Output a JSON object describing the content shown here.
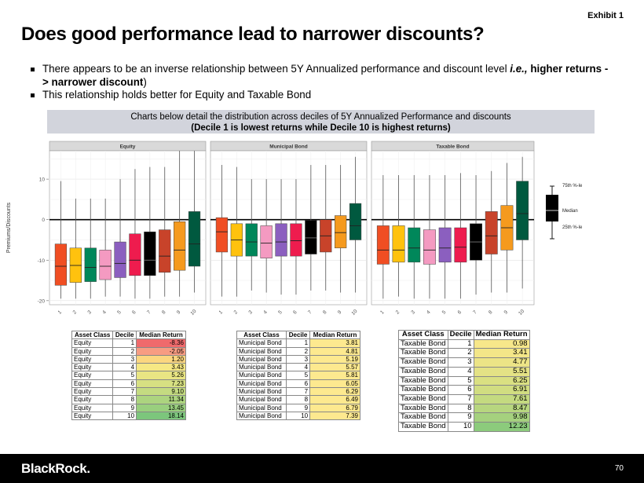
{
  "exhibit": "Exhibit 1",
  "title": "Does good performance lead to narrower discounts?",
  "bullets": [
    {
      "text": "There appears to be an inverse relationship between 5Y Annualized performance and discount level ",
      "bold": "(i.e., higher returns -> narrower discount)"
    },
    {
      "text": "This relationship holds better for Equity and Taxable Bond",
      "bold": ""
    }
  ],
  "banner": {
    "line1": "Charts below detail the distribution across deciles of 5Y Annualized Performance and discounts",
    "line2": "(Decile 1 is lowest returns while Decile 10 is highest returns)"
  },
  "chart_data": {
    "type": "box",
    "ylabel": "Premiums/Discounts",
    "ylim": [
      -21,
      17
    ],
    "yticks": [
      10,
      0,
      -10,
      -20
    ],
    "categories": [
      "1",
      "2",
      "3",
      "4",
      "5",
      "6",
      "7",
      "8",
      "9",
      "10"
    ],
    "reference_line": 0,
    "colors": [
      "#f04e23",
      "#ffc20e",
      "#00875a",
      "#f49ac1",
      "#8b5fbf",
      "#ee1c4e",
      "#000000",
      "#c8432a",
      "#f59a1e",
      "#00593f"
    ],
    "panels": [
      {
        "name": "Equity",
        "boxes": [
          {
            "q1": -16.2,
            "med": -11.5,
            "q3": -6.0,
            "lo": -19.5,
            "hi": 9.5
          },
          {
            "q1": -15.5,
            "med": -11.3,
            "q3": -7.0,
            "lo": -19.5,
            "hi": 5.2
          },
          {
            "q1": -15.3,
            "med": -11.8,
            "q3": -7.0,
            "lo": -19.5,
            "hi": 5.2
          },
          {
            "q1": -14.8,
            "med": -11.5,
            "q3": -7.5,
            "lo": -19.0,
            "hi": 5.2
          },
          {
            "q1": -14.3,
            "med": -10.8,
            "q3": -5.5,
            "lo": -19.0,
            "hi": 10.0
          },
          {
            "q1": -13.8,
            "med": -10.0,
            "q3": -3.5,
            "lo": -19.5,
            "hi": 12.5
          },
          {
            "q1": -13.8,
            "med": -10.0,
            "q3": -3.0,
            "lo": -19.5,
            "hi": 13.0
          },
          {
            "q1": -13.0,
            "med": -9.0,
            "q3": -2.5,
            "lo": -19.0,
            "hi": 13.0
          },
          {
            "q1": -12.5,
            "med": -7.5,
            "q3": -0.5,
            "lo": -19.0,
            "hi": 17.0
          },
          {
            "q1": -11.5,
            "med": -6.0,
            "q3": 2.0,
            "lo": -18.0,
            "hi": 17.0
          }
        ]
      },
      {
        "name": "Municipal Bond",
        "boxes": [
          {
            "q1": -8.0,
            "med": -3.0,
            "q3": 0.5,
            "lo": -19.0,
            "hi": 13.5
          },
          {
            "q1": -9.0,
            "med": -5.0,
            "q3": -1.0,
            "lo": -19.0,
            "hi": 13.0
          },
          {
            "q1": -9.0,
            "med": -5.5,
            "q3": -1.0,
            "lo": -17.5,
            "hi": 10.0
          },
          {
            "q1": -9.5,
            "med": -5.8,
            "q3": -1.5,
            "lo": -18.0,
            "hi": 10.0
          },
          {
            "q1": -9.0,
            "med": -5.5,
            "q3": -1.0,
            "lo": -18.5,
            "hi": 10.0
          },
          {
            "q1": -9.0,
            "med": -5.2,
            "q3": -1.0,
            "lo": -18.5,
            "hi": 10.0
          },
          {
            "q1": -8.5,
            "med": -4.5,
            "q3": -0.2,
            "lo": -17.5,
            "hi": 13.5
          },
          {
            "q1": -8.0,
            "med": -4.0,
            "q3": 0.0,
            "lo": -17.5,
            "hi": 13.5
          },
          {
            "q1": -7.0,
            "med": -3.2,
            "q3": 1.0,
            "lo": -18.0,
            "hi": 13.5
          },
          {
            "q1": -5.0,
            "med": -1.5,
            "q3": 4.0,
            "lo": -18.0,
            "hi": 15.5
          }
        ]
      },
      {
        "name": "Taxable Bond",
        "boxes": [
          {
            "q1": -11.0,
            "med": -7.5,
            "q3": -1.5,
            "lo": -19.5,
            "hi": 11.0
          },
          {
            "q1": -10.5,
            "med": -7.5,
            "q3": -1.5,
            "lo": -19.0,
            "hi": 11.0
          },
          {
            "q1": -10.5,
            "med": -7.0,
            "q3": -2.0,
            "lo": -19.5,
            "hi": 11.0
          },
          {
            "q1": -11.0,
            "med": -7.5,
            "q3": -2.5,
            "lo": -19.5,
            "hi": 11.0
          },
          {
            "q1": -10.5,
            "med": -7.0,
            "q3": -2.0,
            "lo": -19.5,
            "hi": 11.0
          },
          {
            "q1": -10.5,
            "med": -6.8,
            "q3": -2.0,
            "lo": -19.5,
            "hi": 11.5
          },
          {
            "q1": -10.0,
            "med": -5.5,
            "q3": -1.0,
            "lo": -18.5,
            "hi": 11.0
          },
          {
            "q1": -8.5,
            "med": -4.0,
            "q3": 2.0,
            "lo": -18.0,
            "hi": 12.0
          },
          {
            "q1": -7.5,
            "med": -2.0,
            "q3": 3.5,
            "lo": -18.0,
            "hi": 14.0
          },
          {
            "q1": -5.0,
            "med": 1.5,
            "q3": 9.5,
            "lo": -17.0,
            "hi": 15.5
          }
        ]
      }
    ],
    "legend": {
      "q3": "75th %-le",
      "med": "Median",
      "q1": "25th %-le"
    }
  },
  "tables": {
    "equity": {
      "headers": [
        "Asset Class",
        "Decile",
        "Median Return"
      ],
      "rows": [
        [
          "Equity",
          "1",
          "-8.36"
        ],
        [
          "Equity",
          "2",
          "-2.05"
        ],
        [
          "Equity",
          "3",
          "1.20"
        ],
        [
          "Equity",
          "4",
          "3.43"
        ],
        [
          "Equity",
          "5",
          "5.26"
        ],
        [
          "Equity",
          "6",
          "7.23"
        ],
        [
          "Equity",
          "7",
          "9.10"
        ],
        [
          "Equity",
          "8",
          "11.34"
        ],
        [
          "Equity",
          "9",
          "13.45"
        ],
        [
          "Equity",
          "10",
          "18.14"
        ]
      ],
      "heat": [
        "#ef6a6c",
        "#f79c82",
        "#fbd67f",
        "#f6e884",
        "#e9e583",
        "#d7e082",
        "#c4db81",
        "#acd47f",
        "#99cf7e",
        "#7cc67c"
      ]
    },
    "muni": {
      "headers": [
        "Asset Class",
        "Decile",
        "Median Return"
      ],
      "rows": [
        [
          "Municipal Bond",
          "1",
          "3.81"
        ],
        [
          "Municipal Bond",
          "2",
          "4.81"
        ],
        [
          "Municipal Bond",
          "3",
          "5.19"
        ],
        [
          "Municipal Bond",
          "4",
          "5.57"
        ],
        [
          "Municipal Bond",
          "5",
          "5.81"
        ],
        [
          "Municipal Bond",
          "6",
          "6.05"
        ],
        [
          "Municipal Bond",
          "7",
          "6.29"
        ],
        [
          "Municipal Bond",
          "8",
          "6.49"
        ],
        [
          "Municipal Bond",
          "9",
          "6.79"
        ],
        [
          "Municipal Bond",
          "10",
          "7.39"
        ]
      ],
      "heat": [
        "#fde98f",
        "#fde98f",
        "#fde98f",
        "#fde98f",
        "#fde98f",
        "#fde98f",
        "#fde98f",
        "#fde98f",
        "#fde98f",
        "#fde98f"
      ]
    },
    "taxable": {
      "headers": [
        "Asset Class",
        "Decile",
        "Median Return"
      ],
      "rows": [
        [
          "Taxable Bond",
          "1",
          "0.98"
        ],
        [
          "Taxable Bond",
          "2",
          "3.41"
        ],
        [
          "Taxable Bond",
          "3",
          "4.77"
        ],
        [
          "Taxable Bond",
          "4",
          "5.51"
        ],
        [
          "Taxable Bond",
          "5",
          "6.25"
        ],
        [
          "Taxable Bond",
          "6",
          "6.91"
        ],
        [
          "Taxable Bond",
          "7",
          "7.61"
        ],
        [
          "Taxable Bond",
          "8",
          "8.47"
        ],
        [
          "Taxable Bond",
          "9",
          "9.98"
        ],
        [
          "Taxable Bond",
          "10",
          "12.23"
        ]
      ],
      "heat": [
        "#f7e78a",
        "#f3e688",
        "#ece486",
        "#e4e285",
        "#dae082",
        "#d1dd81",
        "#c4da80",
        "#b7d67f",
        "#a5d17e",
        "#8ccb7c"
      ]
    }
  },
  "footer": {
    "logo": "BlackRock.",
    "page": "70"
  }
}
